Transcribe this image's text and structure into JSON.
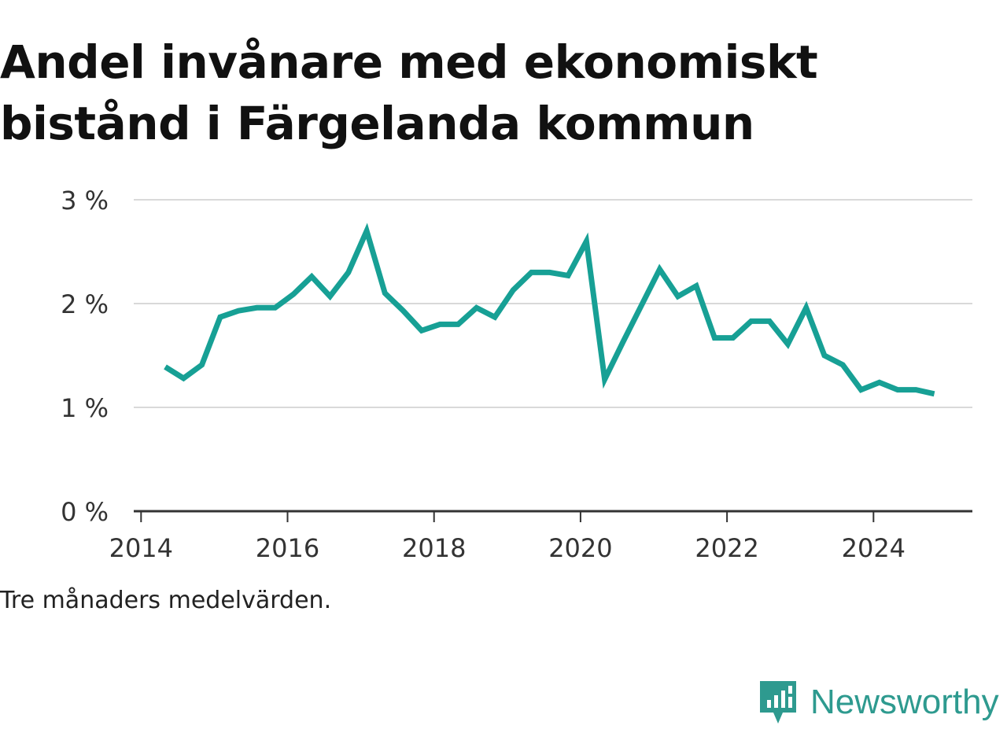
{
  "title": "Andel invånare med ekonomiskt bistånd i Färgelanda kommun",
  "note": "Tre månaders medelvärden.",
  "brand": {
    "name": "Newsworthy",
    "icon": "newsworthy-logo-icon",
    "color": "#2e9a8f"
  },
  "chart_data": {
    "type": "line",
    "title": "Andel invånare med ekonomiskt bistånd i Färgelanda kommun",
    "xlabel": "",
    "ylabel": "",
    "xlim": [
      2013.9,
      2025.35
    ],
    "ylim": [
      0,
      3
    ],
    "x_ticks": [
      2014,
      2016,
      2018,
      2020,
      2022,
      2024
    ],
    "x_tick_labels": [
      "2014",
      "2016",
      "2018",
      "2020",
      "2022",
      "2024"
    ],
    "y_ticks": [
      0,
      1,
      2,
      3
    ],
    "y_tick_labels": [
      "0 %",
      "1 %",
      "2 %",
      "3 %"
    ],
    "grid": "horizontal",
    "legend": "none",
    "line_color": "#17a095",
    "series": [
      {
        "x": [
          2014.33,
          2014.58,
          2014.83,
          2015.08,
          2015.33,
          2015.58,
          2015.83,
          2016.08,
          2016.33,
          2016.58,
          2016.83,
          2017.08,
          2017.33,
          2017.58,
          2017.83,
          2018.08,
          2018.33,
          2018.58,
          2018.83,
          2019.08,
          2019.33,
          2019.58,
          2019.83,
          2020.08,
          2020.33,
          2020.58,
          2020.83,
          2021.08,
          2021.33,
          2021.58,
          2021.83,
          2022.08,
          2022.33,
          2022.58,
          2022.83,
          2023.08,
          2023.33,
          2023.58,
          2023.83,
          2024.08,
          2024.33,
          2024.58,
          2024.83
        ],
        "values": [
          1.39,
          1.28,
          1.41,
          1.87,
          1.93,
          1.96,
          1.96,
          2.09,
          2.26,
          2.07,
          2.3,
          2.7,
          2.1,
          1.93,
          1.74,
          1.8,
          1.8,
          1.96,
          1.87,
          2.13,
          2.3,
          2.3,
          2.27,
          2.6,
          1.27,
          1.63,
          1.98,
          2.33,
          2.07,
          2.17,
          1.67,
          1.67,
          1.83,
          1.83,
          1.61,
          1.96,
          1.5,
          1.41,
          1.17,
          1.24,
          1.17,
          1.17,
          1.13
        ]
      }
    ]
  }
}
